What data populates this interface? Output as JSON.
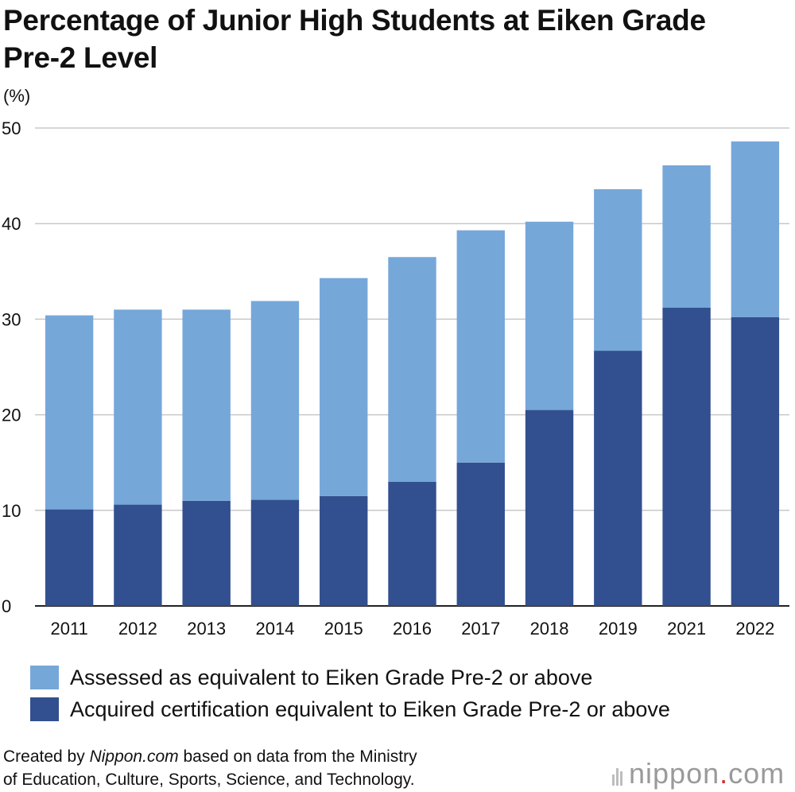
{
  "chart_data": {
    "type": "bar",
    "stacked": true,
    "title": "Percentage of Junior High Students at Eiken Grade Pre-2 Level",
    "unit_label": "(%)",
    "categories": [
      "2011",
      "2012",
      "2013",
      "2014",
      "2015",
      "2016",
      "2017",
      "2018",
      "2019",
      "2021",
      "2022"
    ],
    "series": [
      {
        "name": "Acquired certification equivalent to Eiken Grade Pre-2 or above",
        "color": "#32508f",
        "values": [
          10.1,
          10.6,
          11.0,
          11.1,
          11.5,
          13.0,
          15.0,
          20.5,
          26.7,
          31.2,
          30.2
        ]
      },
      {
        "name": "Assessed as equivalent to Eiken Grade Pre-2 or above",
        "color": "#76a7d9",
        "values": [
          20.3,
          20.4,
          20.0,
          20.8,
          22.8,
          23.5,
          24.3,
          19.7,
          16.9,
          14.9,
          18.4
        ]
      }
    ],
    "totals": [
      30.4,
      31.0,
      31.0,
      31.9,
      34.3,
      36.5,
      39.3,
      40.2,
      43.6,
      46.1,
      48.6
    ],
    "yticks": [
      0,
      10,
      20,
      30,
      40,
      50
    ],
    "ylim": [
      0,
      50
    ],
    "grid": true,
    "legend_position": "bottom-left"
  },
  "title": "Percentage of Junior High Students at Eiken Grade Pre-2 Level",
  "unit": "(%)",
  "legend": [
    {
      "label": "Assessed as equivalent to Eiken Grade Pre-2 or above",
      "color": "#76a7d9"
    },
    {
      "label": "Acquired certification equivalent to Eiken Grade Pre-2 or above",
      "color": "#32508f"
    }
  ],
  "source": {
    "prefix": "Created by ",
    "site": "Nippon.com",
    "line1_rest": " based on data from the Ministry",
    "line2": "of Education, Culture, Sports, Science, and Technology."
  },
  "logo": {
    "brand": "nippon",
    "dot": ".",
    "tld": "com"
  }
}
